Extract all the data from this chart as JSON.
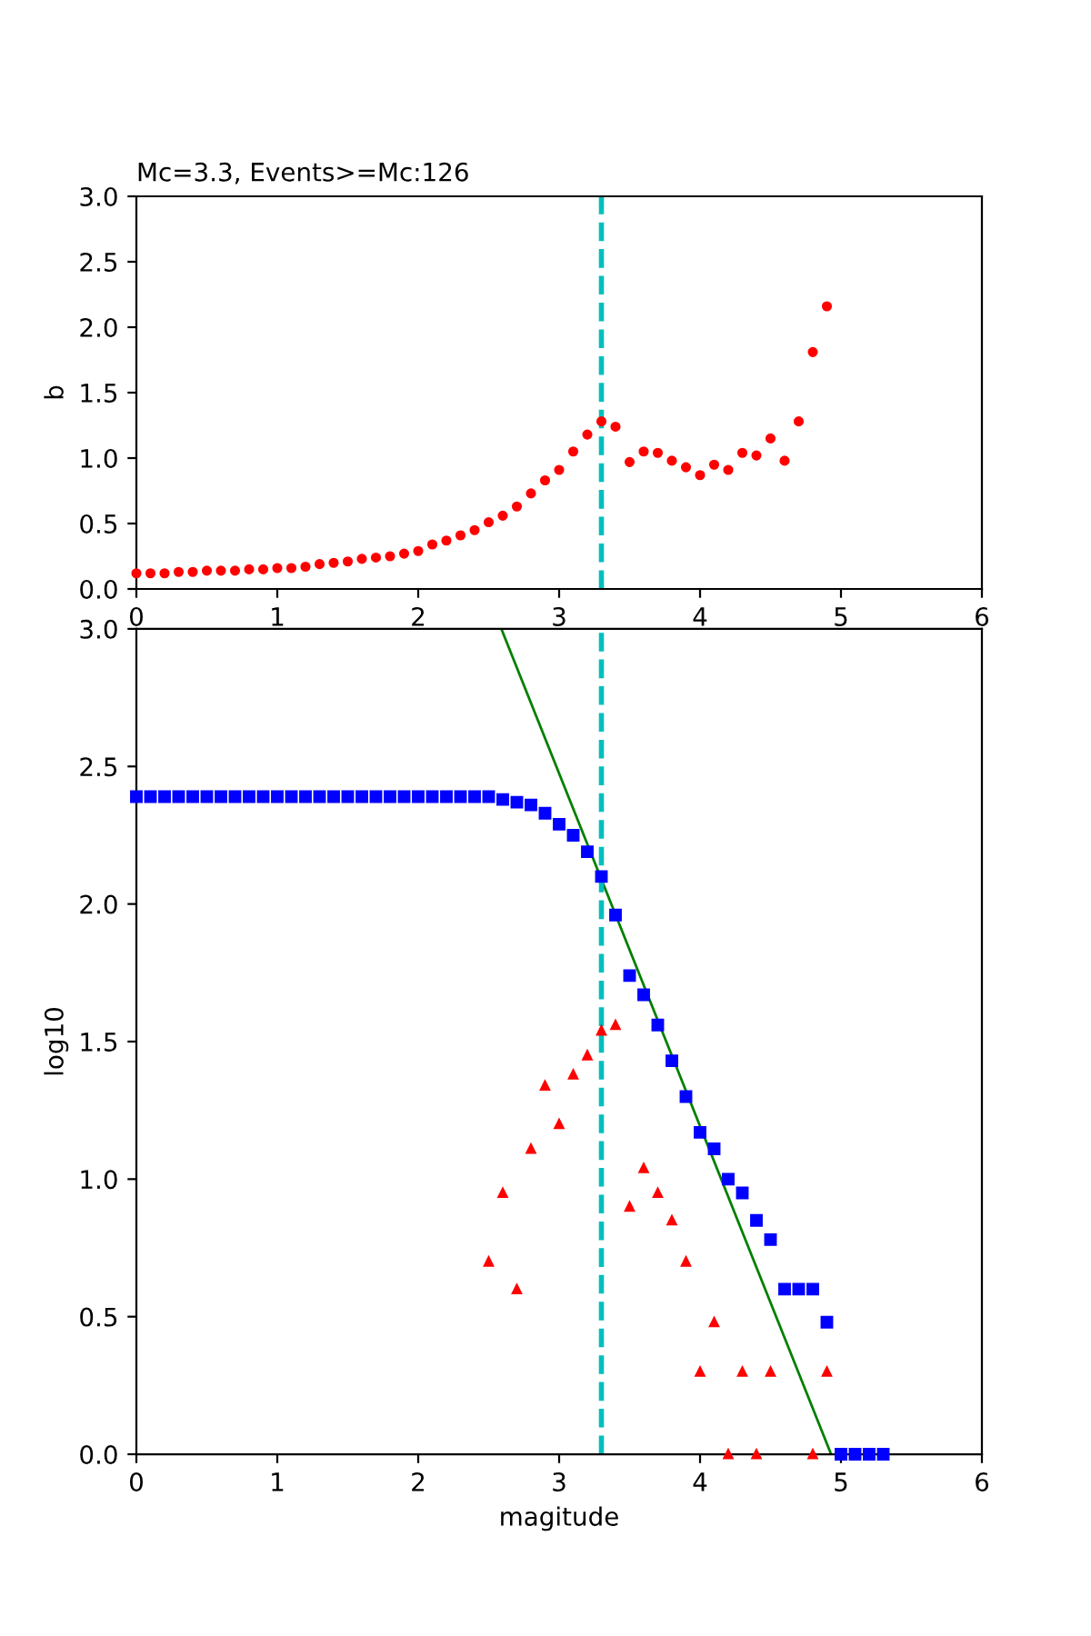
{
  "chart_data": [
    {
      "type": "scatter",
      "title": "Mc=3.3, Events>=Mc:126",
      "ylabel": "b",
      "xlim": [
        0,
        6
      ],
      "xticks": [
        0,
        1,
        2,
        3,
        4,
        5,
        6
      ],
      "ylim": [
        0,
        3
      ],
      "yticks": [
        {
          "value": 0,
          "label": "0.0"
        },
        {
          "value": 0.5,
          "label": "0.5"
        },
        {
          "value": 1,
          "label": "1.0"
        },
        {
          "value": 1.5,
          "label": "1.5"
        },
        {
          "value": 2,
          "label": "2.0"
        },
        {
          "value": 2.5,
          "label": "2.5"
        },
        {
          "value": 3,
          "label": "3.0"
        }
      ],
      "ref_lines": [
        {
          "axis": "x",
          "value": 3.3,
          "color": "#00bfbf",
          "line_style": "dashed"
        }
      ],
      "series": [
        {
          "color": "#ff0000",
          "marker": "circle",
          "x": [
            0,
            0.1,
            0.2,
            0.3,
            0.4,
            0.5,
            0.6,
            0.7,
            0.8,
            0.9,
            1.0,
            1.1,
            1.2,
            1.3,
            1.4,
            1.5,
            1.6,
            1.7,
            1.8,
            1.9,
            2.0,
            2.1,
            2.2,
            2.3,
            2.4,
            2.5,
            2.6,
            2.7,
            2.8,
            2.9,
            3.0,
            3.1,
            3.2,
            3.3,
            3.4,
            3.5,
            3.6,
            3.7,
            3.8,
            3.9,
            4.0,
            4.1,
            4.2,
            4.3,
            4.4,
            4.5,
            4.6,
            4.7,
            4.8,
            4.9
          ],
          "values": [
            0.12,
            0.12,
            0.12,
            0.13,
            0.13,
            0.14,
            0.14,
            0.14,
            0.15,
            0.15,
            0.16,
            0.16,
            0.17,
            0.19,
            0.2,
            0.21,
            0.23,
            0.24,
            0.25,
            0.27,
            0.29,
            0.34,
            0.37,
            0.41,
            0.45,
            0.51,
            0.56,
            0.63,
            0.73,
            0.83,
            0.91,
            1.05,
            1.18,
            1.28,
            1.24,
            0.97,
            1.05,
            1.04,
            0.98,
            0.93,
            0.87,
            0.95,
            0.91,
            1.04,
            1.02,
            1.15,
            0.98,
            1.28,
            1.81,
            2.16
          ]
        }
      ]
    },
    {
      "type": "scatter",
      "xlabel": "magitude",
      "ylabel": "log10",
      "xlim": [
        0,
        6
      ],
      "xticks": [
        0,
        1,
        2,
        3,
        4,
        5,
        6
      ],
      "ylim": [
        0,
        3
      ],
      "yticks": [
        {
          "value": 0,
          "label": "0.0"
        },
        {
          "value": 0.5,
          "label": "0.5"
        },
        {
          "value": 1,
          "label": "1.0"
        },
        {
          "value": 1.5,
          "label": "1.5"
        },
        {
          "value": 2,
          "label": "2.0"
        },
        {
          "value": 2.5,
          "label": "2.5"
        },
        {
          "value": 3,
          "label": "3.0"
        }
      ],
      "ref_lines": [
        {
          "axis": "x",
          "value": 3.3,
          "color": "#00bfbf",
          "line_style": "dashed"
        }
      ],
      "series": [
        {
          "color": "#0000ff",
          "marker": "square",
          "x": [
            0,
            0.1,
            0.2,
            0.3,
            0.4,
            0.5,
            0.6,
            0.7,
            0.8,
            0.9,
            1.0,
            1.1,
            1.2,
            1.3,
            1.4,
            1.5,
            1.6,
            1.7,
            1.8,
            1.9,
            2.0,
            2.1,
            2.2,
            2.3,
            2.4,
            2.5,
            2.6,
            2.7,
            2.8,
            2.9,
            3.0,
            3.1,
            3.2,
            3.3,
            3.4,
            3.5,
            3.6,
            3.7,
            3.8,
            3.9,
            4.0,
            4.1,
            4.2,
            4.3,
            4.4,
            4.5,
            4.6,
            4.7,
            4.8,
            4.9,
            5.0,
            5.1,
            5.2,
            5.3
          ],
          "values": [
            2.39,
            2.39,
            2.39,
            2.39,
            2.39,
            2.39,
            2.39,
            2.39,
            2.39,
            2.39,
            2.39,
            2.39,
            2.39,
            2.39,
            2.39,
            2.39,
            2.39,
            2.39,
            2.39,
            2.39,
            2.39,
            2.39,
            2.39,
            2.39,
            2.39,
            2.39,
            2.38,
            2.37,
            2.36,
            2.33,
            2.29,
            2.25,
            2.19,
            2.1,
            1.96,
            1.74,
            1.67,
            1.56,
            1.43,
            1.3,
            1.17,
            1.11,
            1.0,
            0.95,
            0.85,
            0.78,
            0.6,
            0.6,
            0.6,
            0.48,
            0,
            0,
            0,
            0
          ]
        },
        {
          "color": "#ff0000",
          "marker": "triangle",
          "x": [
            2.5,
            2.6,
            2.7,
            2.8,
            2.9,
            3.0,
            3.1,
            3.2,
            3.3,
            3.4,
            3.5,
            3.6,
            3.7,
            3.8,
            3.9,
            4.0,
            4.1,
            4.2,
            4.3,
            4.4,
            4.5,
            4.8,
            4.9
          ],
          "values": [
            0.7,
            0.95,
            0.6,
            1.11,
            1.34,
            1.2,
            1.38,
            1.45,
            1.54,
            1.56,
            0.9,
            1.04,
            0.95,
            0.85,
            0.7,
            0.3,
            0.48,
            0,
            0.3,
            0,
            0.3,
            0,
            0.3
          ]
        },
        {
          "type": "line",
          "color": "#008000",
          "marker": "none",
          "x": [
            2.59,
            4.93
          ],
          "values": [
            3.0,
            0
          ]
        }
      ]
    }
  ]
}
